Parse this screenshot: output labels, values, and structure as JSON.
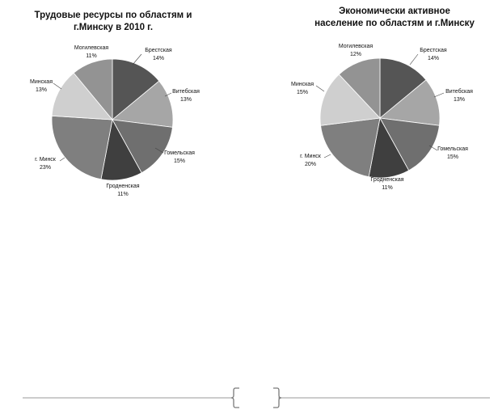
{
  "chart_data": [
    {
      "type": "pie",
      "title": "Трудовые ресурсы по областям и г.Минску в 2010 г.",
      "title_lines": [
        "Трудовые ресурсы по областям и",
        "г.Минску в 2010 г."
      ],
      "slices": [
        {
          "name": "Брестская",
          "value": 14,
          "label": "14%",
          "color": "#555555"
        },
        {
          "name": "Витебская",
          "value": 13,
          "label": "13%",
          "color": "#a6a6a6"
        },
        {
          "name": "Гомельская",
          "value": 15,
          "label": "15%",
          "color": "#6f6f6f"
        },
        {
          "name": "Гродненская",
          "value": 11,
          "label": "11%",
          "color": "#3f3f3f"
        },
        {
          "name": "г. Минск",
          "value": 23,
          "label": "23%",
          "color": "#7f7f7f"
        },
        {
          "name": "Минская",
          "value": 13,
          "label": "13%",
          "color": "#cfcfcf"
        },
        {
          "name": "Могилевская",
          "value": 11,
          "label": "11%",
          "color": "#939393"
        }
      ]
    },
    {
      "type": "pie",
      "title": "Экономически активное население по областям и г.Минску",
      "title_lines": [
        "Экономически активное",
        "население по областям и г.Минску"
      ],
      "slices": [
        {
          "name": "Брестская",
          "value": 14,
          "label": "14%",
          "color": "#555555"
        },
        {
          "name": "Витебская",
          "value": 13,
          "label": "13%",
          "color": "#a6a6a6"
        },
        {
          "name": "Гомельская",
          "value": 15,
          "label": "15%",
          "color": "#6f6f6f"
        },
        {
          "name": "Гродненская",
          "value": 11,
          "label": "11%",
          "color": "#3f3f3f"
        },
        {
          "name": "г. Минск",
          "value": 20,
          "label": "20%",
          "color": "#7f7f7f"
        },
        {
          "name": "Минская",
          "value": 15,
          "label": "15%",
          "color": "#cfcfcf"
        },
        {
          "name": "Могилевская",
          "value": 12,
          "label": "12%",
          "color": "#939393"
        }
      ]
    }
  ]
}
